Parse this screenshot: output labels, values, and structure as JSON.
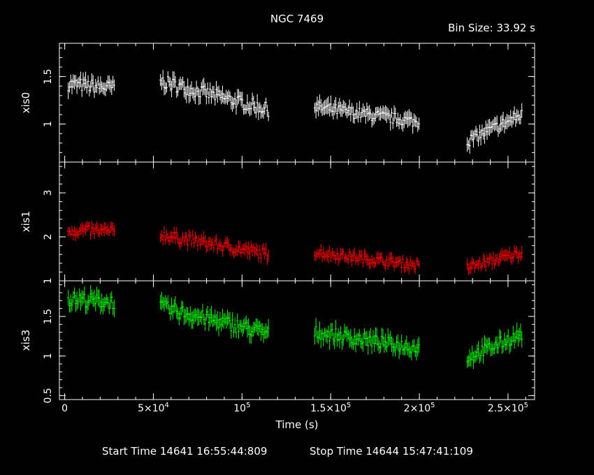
{
  "title": "NGC 7469",
  "bin_size": "Bin Size: 33.92 s",
  "start_time": "Start Time 14641 16:55:44:809",
  "stop_time": "Stop Time 14644 15:47:41:109",
  "chart_data": [
    {
      "type": "scatter",
      "ylabel": "xis0",
      "color": "#ffffff",
      "ylim": [
        0.6,
        1.85
      ],
      "yticks": [
        1,
        1.5
      ],
      "xlim": [
        -3000,
        265000
      ],
      "segments": [
        {
          "x": [
            2000,
            28000
          ],
          "base": [
            1.42,
            1.38
          ],
          "amp": 0.07,
          "err": 0.07
        },
        {
          "x": [
            54000,
            115000
          ],
          "base": [
            1.45,
            1.15
          ],
          "amp": 0.07,
          "err": 0.07
        },
        {
          "x": [
            141000,
            200000
          ],
          "base": [
            1.18,
            1.02
          ],
          "amp": 0.06,
          "err": 0.07
        },
        {
          "x": [
            227000,
            258000
          ],
          "base": [
            0.82,
            1.1
          ],
          "amp": 0.06,
          "err": 0.07
        }
      ]
    },
    {
      "type": "scatter",
      "ylabel": "xis1",
      "color": "#ff0000",
      "ylim": [
        1.0,
        3.7
      ],
      "yticks": [
        1,
        2,
        3
      ],
      "xlim": [
        -3000,
        265000
      ],
      "segments": [
        {
          "x": [
            2000,
            28000
          ],
          "base": [
            2.15,
            2.12
          ],
          "amp": 0.12,
          "err": 0.12
        },
        {
          "x": [
            54000,
            115000
          ],
          "base": [
            2.05,
            1.6
          ],
          "amp": 0.12,
          "err": 0.12
        },
        {
          "x": [
            141000,
            200000
          ],
          "base": [
            1.65,
            1.35
          ],
          "amp": 0.1,
          "err": 0.12
        },
        {
          "x": [
            227000,
            258000
          ],
          "base": [
            1.3,
            1.65
          ],
          "amp": 0.1,
          "err": 0.12
        }
      ]
    },
    {
      "type": "scatter",
      "ylabel": "xis3",
      "color": "#00ff00",
      "ylim": [
        0.45,
        1.95
      ],
      "yticks": [
        0.5,
        1,
        1.5
      ],
      "xlim": [
        -3000,
        265000
      ],
      "segments": [
        {
          "x": [
            2000,
            28000
          ],
          "base": [
            1.72,
            1.68
          ],
          "amp": 0.09,
          "err": 0.09
        },
        {
          "x": [
            54000,
            115000
          ],
          "base": [
            1.62,
            1.28
          ],
          "amp": 0.09,
          "err": 0.09
        },
        {
          "x": [
            141000,
            200000
          ],
          "base": [
            1.3,
            1.1
          ],
          "amp": 0.08,
          "err": 0.09
        },
        {
          "x": [
            227000,
            258000
          ],
          "base": [
            0.98,
            1.28
          ],
          "amp": 0.08,
          "err": 0.09
        }
      ]
    }
  ],
  "x_axis": {
    "label": "Time (s)",
    "ticks": [
      {
        "value": 0,
        "label": "0"
      },
      {
        "value": 50000,
        "label": "5×10",
        "exp": "4"
      },
      {
        "value": 100000,
        "label": "10",
        "exp": "5"
      },
      {
        "value": 150000,
        "label": "1.5×10",
        "exp": "5"
      },
      {
        "value": 200000,
        "label": "2×10",
        "exp": "5"
      },
      {
        "value": 250000,
        "label": "2.5×10",
        "exp": "5"
      }
    ]
  }
}
